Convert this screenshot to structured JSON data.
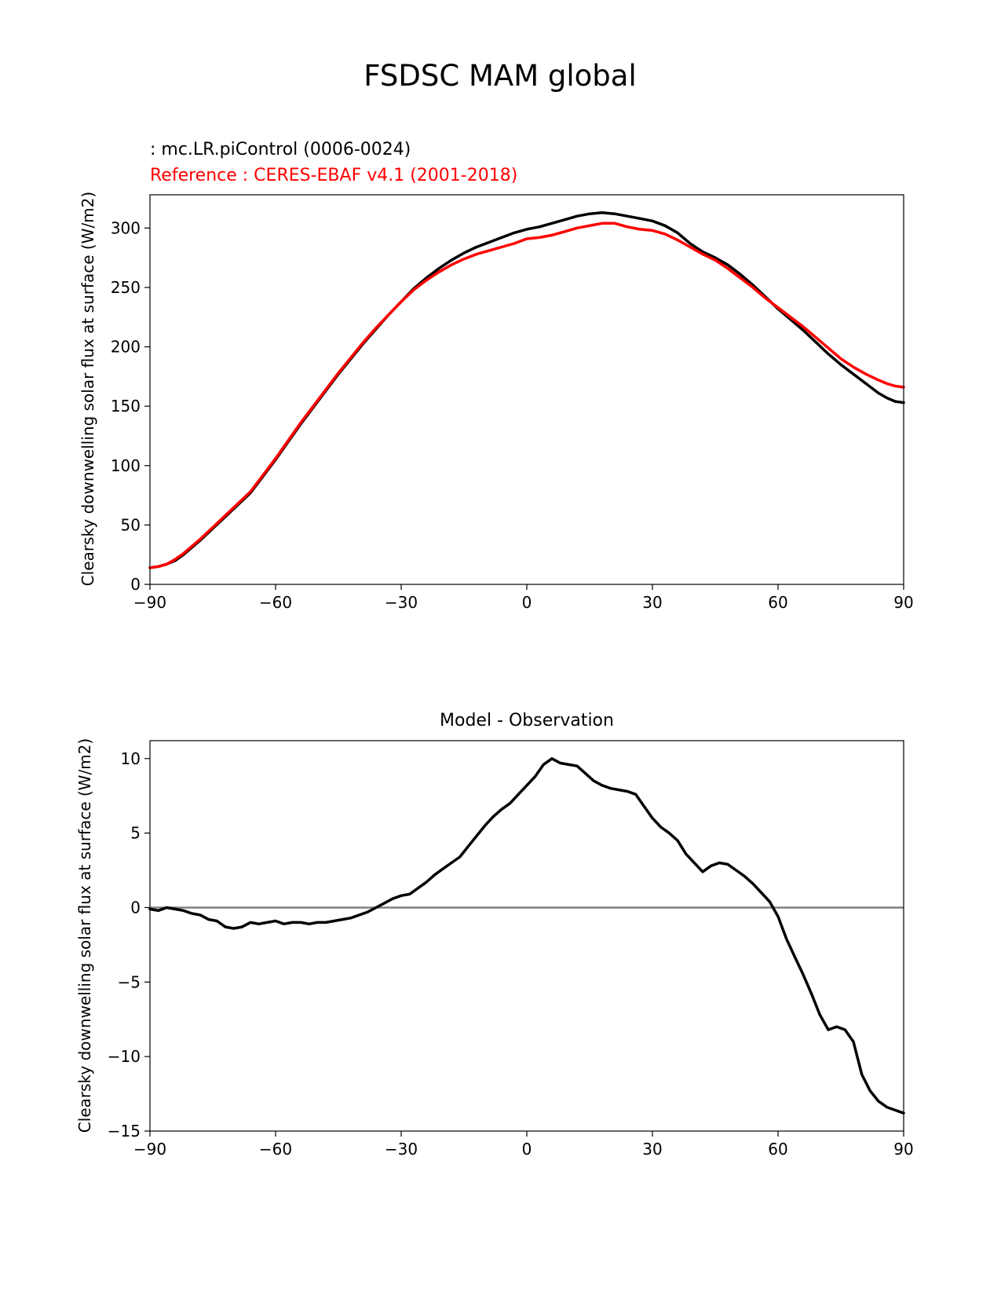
{
  "suptitle": "FSDSC MAM global",
  "chart_data": [
    {
      "type": "line",
      "legend_test": " : mc.LR.piControl (0006-0024)",
      "legend_ref": "Reference : CERES-EBAF v4.1 (2001-2018)",
      "ylabel": "Clearsky downwelling solar flux at surface (W/m2)",
      "xlim": [
        -90,
        90
      ],
      "ylim": [
        0,
        328
      ],
      "xticks": [
        -90,
        -60,
        -30,
        0,
        30,
        60,
        90
      ],
      "xtick_labels": [
        "−90",
        "−60",
        "−30",
        "0",
        "30",
        "60",
        "90"
      ],
      "yticks": [
        0,
        50,
        100,
        150,
        200,
        250,
        300
      ],
      "ytick_labels": [
        "0",
        "50",
        "100",
        "150",
        "200",
        "250",
        "300"
      ],
      "series": [
        {
          "color": "#000000",
          "x": [
            -90,
            -88,
            -86,
            -84,
            -82,
            -80,
            -78,
            -75,
            -72,
            -69,
            -66,
            -63,
            -60,
            -57,
            -54,
            -51,
            -48,
            -45,
            -42,
            -39,
            -36,
            -33,
            -30,
            -27,
            -24,
            -21,
            -18,
            -15,
            -12,
            -9,
            -6,
            -3,
            0,
            3,
            6,
            9,
            12,
            15,
            18,
            21,
            24,
            27,
            30,
            33,
            36,
            39,
            42,
            45,
            48,
            51,
            54,
            57,
            60,
            63,
            66,
            69,
            72,
            75,
            78,
            81,
            84,
            86,
            88,
            90
          ],
          "y": [
            14,
            15,
            17,
            20,
            25,
            31,
            37,
            47,
            57,
            67,
            77,
            91,
            105,
            120,
            135,
            149,
            163,
            177,
            190,
            203,
            215,
            227,
            238,
            249,
            258,
            266,
            273,
            279,
            284,
            288,
            292,
            296,
            299,
            301,
            304,
            307,
            310,
            312,
            313,
            312,
            310,
            308,
            306,
            302,
            296,
            287,
            280,
            275,
            269,
            261,
            252,
            242,
            232,
            223,
            214,
            204,
            194,
            185,
            177,
            169,
            161,
            157,
            154,
            153
          ]
        },
        {
          "color": "#ff0000",
          "x": [
            -90,
            -88,
            -86,
            -84,
            -82,
            -80,
            -78,
            -75,
            -72,
            -69,
            -66,
            -63,
            -60,
            -57,
            -54,
            -51,
            -48,
            -45,
            -42,
            -39,
            -36,
            -33,
            -30,
            -27,
            -24,
            -21,
            -18,
            -15,
            -12,
            -9,
            -6,
            -3,
            0,
            3,
            6,
            9,
            12,
            15,
            18,
            21,
            24,
            27,
            30,
            33,
            36,
            39,
            42,
            45,
            48,
            51,
            54,
            57,
            60,
            63,
            66,
            69,
            72,
            75,
            78,
            81,
            84,
            86,
            88,
            90
          ],
          "y": [
            14,
            15,
            17,
            21,
            26,
            32,
            38,
            48,
            58,
            68,
            78,
            92,
            106,
            121,
            136,
            150,
            164,
            178,
            191,
            204,
            216,
            227,
            238,
            248,
            256,
            263,
            269,
            274,
            278,
            281,
            284,
            287,
            291,
            292,
            294,
            297,
            300,
            302,
            304,
            304,
            301,
            299,
            298,
            295,
            290,
            284,
            278,
            273,
            266,
            258,
            250,
            241,
            233,
            225,
            217,
            208,
            199,
            190,
            183,
            177,
            172,
            169,
            167,
            166
          ]
        }
      ]
    },
    {
      "type": "line",
      "title": "Model - Observation",
      "ylabel": "Clearsky downwelling solar flux at surface (W/m2)",
      "xlim": [
        -90,
        90
      ],
      "ylim": [
        -15,
        11.2
      ],
      "xticks": [
        -90,
        -60,
        -30,
        0,
        30,
        60,
        90
      ],
      "xtick_labels": [
        "−90",
        "−60",
        "−30",
        "0",
        "30",
        "60",
        "90"
      ],
      "yticks": [
        -15,
        -10,
        -5,
        0,
        5,
        10
      ],
      "ytick_labels": [
        "−15",
        "−10",
        "−5",
        "0",
        "5",
        "10"
      ],
      "zero_line": {
        "y": 0,
        "color": "#808080"
      },
      "series": [
        {
          "color": "#000000",
          "x": [
            -90,
            -88,
            -86,
            -84,
            -82,
            -80,
            -78,
            -76,
            -74,
            -72,
            -70,
            -68,
            -66,
            -64,
            -62,
            -60,
            -58,
            -56,
            -54,
            -52,
            -50,
            -48,
            -46,
            -44,
            -42,
            -40,
            -38,
            -36,
            -34,
            -32,
            -30,
            -28,
            -26,
            -24,
            -22,
            -20,
            -18,
            -16,
            -14,
            -12,
            -10,
            -8,
            -6,
            -4,
            -2,
            0,
            2,
            4,
            6,
            8,
            10,
            12,
            14,
            16,
            18,
            20,
            22,
            24,
            26,
            28,
            30,
            32,
            34,
            36,
            38,
            40,
            42,
            44,
            46,
            48,
            50,
            52,
            54,
            56,
            58,
            60,
            62,
            64,
            66,
            68,
            70,
            72,
            74,
            76,
            78,
            80,
            82,
            84,
            86,
            88,
            90
          ],
          "y": [
            -0.1,
            -0.2,
            0.0,
            -0.1,
            -0.2,
            -0.4,
            -0.5,
            -0.8,
            -0.9,
            -1.3,
            -1.4,
            -1.3,
            -1.0,
            -1.1,
            -1.0,
            -0.9,
            -1.1,
            -1.0,
            -1.0,
            -1.1,
            -1.0,
            -1.0,
            -0.9,
            -0.8,
            -0.7,
            -0.5,
            -0.3,
            0.0,
            0.3,
            0.6,
            0.8,
            0.9,
            1.3,
            1.7,
            2.2,
            2.6,
            3.0,
            3.4,
            4.1,
            4.8,
            5.5,
            6.1,
            6.6,
            7.0,
            7.6,
            8.2,
            8.8,
            9.6,
            10.0,
            9.7,
            9.6,
            9.5,
            9.0,
            8.5,
            8.2,
            8.0,
            7.9,
            7.8,
            7.6,
            6.8,
            6.0,
            5.4,
            5.0,
            4.5,
            3.6,
            3.0,
            2.4,
            2.8,
            3.0,
            2.9,
            2.5,
            2.1,
            1.6,
            1.0,
            0.4,
            -0.6,
            -2.1,
            -3.3,
            -4.5,
            -5.8,
            -7.2,
            -8.2,
            -8.0,
            -8.2,
            -9.0,
            -11.2,
            -12.3,
            -13.0,
            -13.4,
            -13.6,
            -13.8
          ]
        }
      ]
    }
  ]
}
